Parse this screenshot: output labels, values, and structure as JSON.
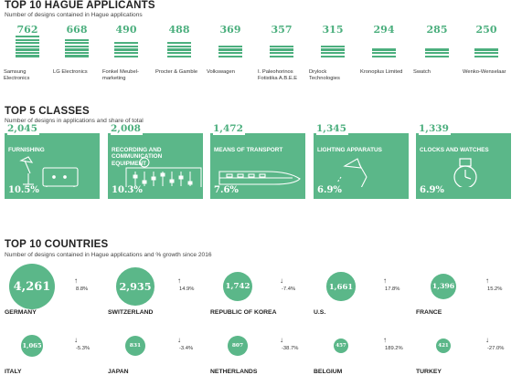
{
  "applicants": {
    "title": "TOP 10 HAGUE APPLICANTS",
    "subtitle": "Number of designs contained in Hague applications",
    "items": [
      {
        "name": "Samsung Electronics",
        "value": 762,
        "bars": 7
      },
      {
        "name": "LG Electronics",
        "value": 668,
        "bars": 6
      },
      {
        "name": "Fonkel Meubel-marketing",
        "value": 490,
        "bars": 5
      },
      {
        "name": "Procter & Gamble",
        "value": 488,
        "bars": 5
      },
      {
        "name": "Volkswagen",
        "value": 369,
        "bars": 4
      },
      {
        "name": "I. Paleohorinos Fotistika A.B.E.E",
        "value": 357,
        "bars": 4
      },
      {
        "name": "Drylock Technologies",
        "value": 315,
        "bars": 4
      },
      {
        "name": "Kronoplus Limited",
        "value": 294,
        "bars": 3
      },
      {
        "name": "Swatch",
        "value": 285,
        "bars": 3
      },
      {
        "name": "Wenko-Wenselaar",
        "value": 250,
        "bars": 3
      }
    ]
  },
  "classes": {
    "title": "TOP 5 CLASSES",
    "subtitle": "Number of designs in applications and share of total",
    "items": [
      {
        "value": "2,045",
        "name": "FURNISHING",
        "share": "10.5%",
        "icon": "furniture-icon"
      },
      {
        "value": "2,008",
        "name": "RECORDING AND COMMUNICATION EQUIPMENT",
        "share": "10.3%",
        "icon": "mixer-icon"
      },
      {
        "value": "1,472",
        "name": "MEANS OF TRANSPORT",
        "share": "7.6%",
        "icon": "train-icon"
      },
      {
        "value": "1,345",
        "name": "LIGHTING APPARATUS",
        "share": "6.9%",
        "icon": "lamp-icon"
      },
      {
        "value": "1,339",
        "name": "CLOCKS AND WATCHES",
        "share": "6.9%",
        "icon": "watch-icon"
      }
    ]
  },
  "countries": {
    "title": "TOP 10 COUNTRIES",
    "subtitle": "Number of designs contained in Hague applications and % growth since 2016",
    "items": [
      {
        "name": "GERMANY",
        "value": "4,261",
        "growth": "8.8%",
        "direction": "up"
      },
      {
        "name": "SWITZERLAND",
        "value": "2,935",
        "growth": "14.9%",
        "direction": "up"
      },
      {
        "name": "REPUBLIC OF KOREA",
        "value": "1,742",
        "growth": "-7.4%",
        "direction": "down"
      },
      {
        "name": "U.S.",
        "value": "1,661",
        "growth": "17.8%",
        "direction": "up"
      },
      {
        "name": "FRANCE",
        "value": "1,396",
        "growth": "15.2%",
        "direction": "up"
      },
      {
        "name": "ITALY",
        "value": "1,065",
        "growth": "-5.3%",
        "direction": "down"
      },
      {
        "name": "JAPAN",
        "value": "831",
        "growth": "-3.4%",
        "direction": "down"
      },
      {
        "name": "NETHERLANDS",
        "value": "807",
        "growth": "-38.7%",
        "direction": "down"
      },
      {
        "name": "BELGIUM",
        "value": "457",
        "growth": "189.2%",
        "direction": "up"
      },
      {
        "name": "TURKEY",
        "value": "421",
        "growth": "-27.0%",
        "direction": "down"
      }
    ]
  },
  "chart_data": [
    {
      "type": "bar",
      "title": "TOP 10 HAGUE APPLICANTS",
      "categories": [
        "Samsung Electronics",
        "LG Electronics",
        "Fonkel Meubel-marketing",
        "Procter & Gamble",
        "Volkswagen",
        "I. Paleohorinos Fotistika A.B.E.E",
        "Drylock Technologies",
        "Kronoplus Limited",
        "Swatch",
        "Wenko-Wenselaar"
      ],
      "values": [
        762,
        668,
        490,
        488,
        369,
        357,
        315,
        294,
        285,
        250
      ]
    },
    {
      "type": "bar",
      "title": "TOP 5 CLASSES",
      "categories": [
        "FURNISHING",
        "RECORDING AND COMMUNICATION EQUIPMENT",
        "MEANS OF TRANSPORT",
        "LIGHTING APPARATUS",
        "CLOCKS AND WATCHES"
      ],
      "values": [
        2045,
        2008,
        1472,
        1345,
        1339
      ],
      "share_percent": [
        10.5,
        10.3,
        7.6,
        6.9,
        6.9
      ]
    },
    {
      "type": "scatter",
      "title": "TOP 10 COUNTRIES",
      "categories": [
        "GERMANY",
        "SWITZERLAND",
        "REPUBLIC OF KOREA",
        "U.S.",
        "FRANCE",
        "ITALY",
        "JAPAN",
        "NETHERLANDS",
        "BELGIUM",
        "TURKEY"
      ],
      "values": [
        4261,
        2935,
        1742,
        1661,
        1396,
        1065,
        831,
        807,
        457,
        421
      ],
      "growth_percent": [
        8.8,
        14.9,
        -7.4,
        17.8,
        15.2,
        -5.3,
        -3.4,
        -38.7,
        189.2,
        -27.0
      ]
    }
  ],
  "colors": {
    "accent": "#5bb789",
    "number": "#4caf7e"
  }
}
